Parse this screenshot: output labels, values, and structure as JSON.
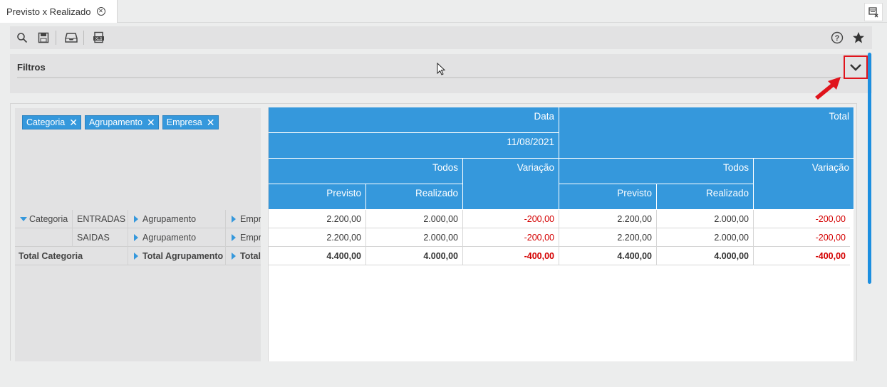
{
  "tab": {
    "title": "Previsto x Realizado"
  },
  "icons": {
    "close_tab": "close-circle-icon",
    "tab_menu": "window-list-icon",
    "search": "search-icon",
    "save": "save-icon",
    "inbox": "inbox-icon",
    "export": "export-xls-icon",
    "help": "help-circle-icon",
    "favorite": "star-icon",
    "expand": "chevron-down-icon"
  },
  "filters": {
    "title": "Filtros"
  },
  "chips": [
    "Categoria",
    "Agrupamento",
    "Empresa"
  ],
  "rows": {
    "header_category": "Categoria",
    "items": [
      {
        "value": "ENTRADAS",
        "group": "Agrupamento",
        "company": "Empr"
      },
      {
        "value": "SAIDAS",
        "group": "Agrupamento",
        "company": "Empr"
      }
    ],
    "total": {
      "category": "Total Categoria",
      "group": "Total Agrupamento",
      "company": "Total"
    }
  },
  "columns": {
    "date_header": "Data",
    "date_value": "11/08/2021",
    "total_header": "Total",
    "todos": "Todos",
    "variacao": "Variação",
    "previsto": "Previsto",
    "realizado": "Realizado"
  },
  "data": [
    [
      "2.200,00",
      "2.000,00",
      "-200,00",
      "2.200,00",
      "2.000,00",
      "-200,00"
    ],
    [
      "2.200,00",
      "2.000,00",
      "-200,00",
      "2.200,00",
      "2.000,00",
      "-200,00"
    ],
    [
      "4.400,00",
      "4.000,00",
      "-400,00",
      "4.400,00",
      "4.000,00",
      "-400,00"
    ]
  ],
  "colors": {
    "header_blue": "#3598dc",
    "negative_red": "#d40000",
    "highlight_red": "#e0141c"
  }
}
